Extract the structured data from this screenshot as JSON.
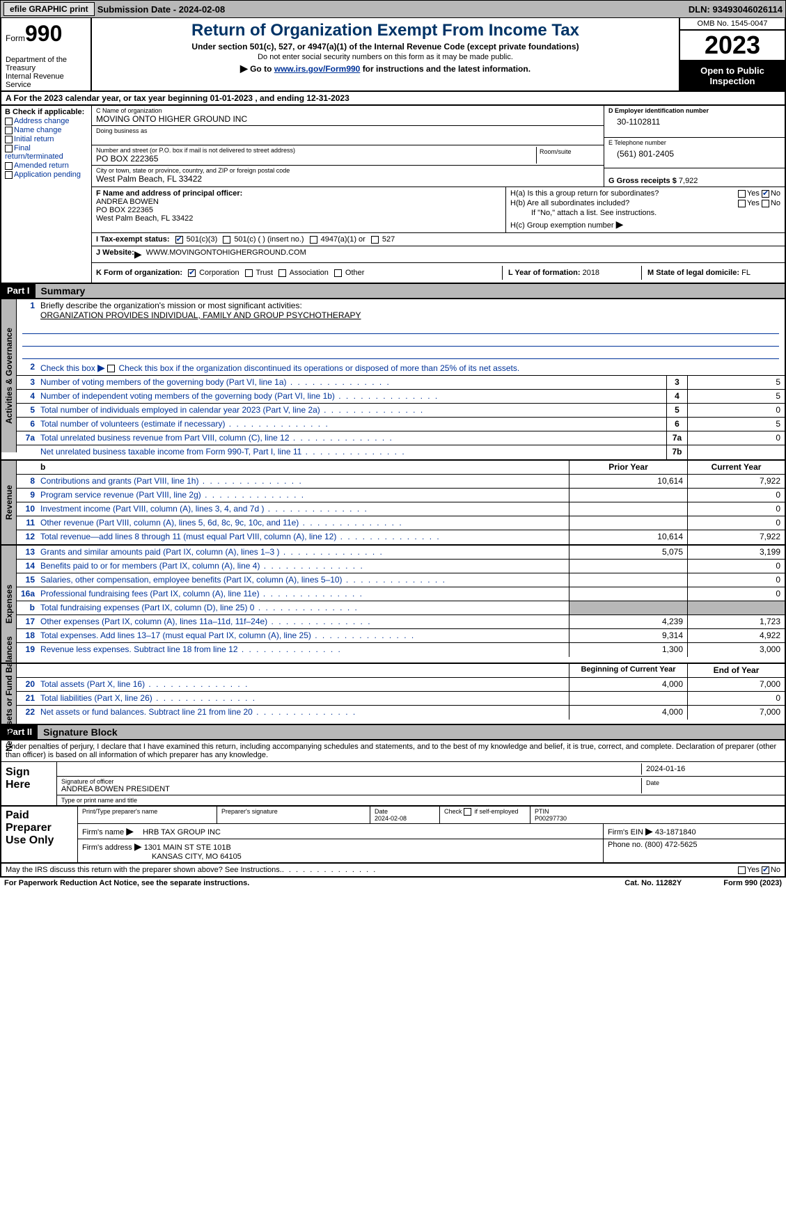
{
  "topbar": {
    "efile_btn": "efile GRAPHIC print",
    "submission_label": "Submission Date - 2024-02-08",
    "dln": "DLN: 93493046026114"
  },
  "header": {
    "form_label": "Form",
    "form_number": "990",
    "dept": "Department of the Treasury",
    "irs": "Internal Revenue Service",
    "title": "Return of Organization Exempt From Income Tax",
    "sub1": "Under section 501(c), 527, or 4947(a)(1) of the Internal Revenue Code (except private foundations)",
    "sub2": "Do not enter social security numbers on this form as it may be made public.",
    "goto_prefix": "Go to ",
    "goto_link": "www.irs.gov/Form990",
    "goto_suffix": " for instructions and the latest information.",
    "omb": "OMB No. 1545-0047",
    "year": "2023",
    "inspect": "Open to Public Inspection"
  },
  "row_a": "A  For the 2023 calendar year, or tax year beginning 01-01-2023    , and ending 12-31-2023",
  "box_b": {
    "hdr": "B Check if applicable:",
    "opts": [
      "Address change",
      "Name change",
      "Initial return",
      "Final return/terminated",
      "Amended return",
      "Application pending"
    ]
  },
  "box_c": {
    "name_lbl": "C Name of organization",
    "name_val": "MOVING ONTO HIGHER GROUND INC",
    "dba_lbl": "Doing business as",
    "addr_lbl": "Number and street (or P.O. box if mail is not delivered to street address)",
    "addr_val": "PO BOX 222365",
    "room_lbl": "Room/suite",
    "city_lbl": "City or town, state or province, country, and ZIP or foreign postal code",
    "city_val": "West Palm Beach, FL   33422"
  },
  "box_d": {
    "lbl": "D Employer identification number",
    "val": "30-1102811"
  },
  "box_e": {
    "lbl": "E Telephone number",
    "val": "(561) 801-2405"
  },
  "box_g": {
    "lbl": "G Gross receipts $",
    "val": "7,922"
  },
  "box_f": {
    "lbl": "F  Name and address of principal officer:",
    "name": "ANDREA BOWEN",
    "addr1": "PO BOX 222365",
    "addr2": "West Palm Beach, FL   33422"
  },
  "box_h": {
    "a_lbl": "H(a)  Is this a group return for subordinates?",
    "b_lbl": "H(b)  Are all subordinates included?",
    "b_note": "If \"No,\" attach a list. See instructions.",
    "c_lbl": "H(c)  Group exemption number ",
    "yes": "Yes",
    "no": "No"
  },
  "row_i": {
    "lbl": "I   Tax-exempt status:",
    "opt1": "501(c)(3)",
    "opt2": "501(c) (  ) (insert no.)",
    "opt3": "4947(a)(1) or",
    "opt4": "527"
  },
  "row_j": {
    "lbl": "J   Website: ",
    "val": "WWW.MOVINGONTOHIGHERGROUND.COM",
    "arrow": "▶"
  },
  "row_k": {
    "lbl": "K Form of organization:",
    "opts": [
      "Corporation",
      "Trust",
      "Association",
      "Other"
    ],
    "l_lbl": "L Year of formation:",
    "l_val": "2018",
    "m_lbl": "M State of legal domicile:",
    "m_val": "FL"
  },
  "part1": {
    "num": "Part I",
    "title": "Summary"
  },
  "summary": {
    "line1_lbl": "Briefly describe the organization's mission or most significant activities:",
    "line1_val": "ORGANIZATION PROVIDES INDIVIDUAL, FAMILY AND GROUP PSYCHOTHERAPY",
    "line2_lbl": "Check this box         if the organization discontinued its operations or disposed of more than 25% of its net assets.",
    "rows_gov": [
      {
        "n": "3",
        "d": "Number of voting members of the governing body (Part VI, line 1a)",
        "box": "3",
        "v": "5"
      },
      {
        "n": "4",
        "d": "Number of independent voting members of the governing body (Part VI, line 1b)",
        "box": "4",
        "v": "5"
      },
      {
        "n": "5",
        "d": "Total number of individuals employed in calendar year 2023 (Part V, line 2a)",
        "box": "5",
        "v": "0"
      },
      {
        "n": "6",
        "d": "Total number of volunteers (estimate if necessary)",
        "box": "6",
        "v": "5"
      },
      {
        "n": "7a",
        "d": "Total unrelated business revenue from Part VIII, column (C), line 12",
        "box": "7a",
        "v": "0"
      },
      {
        "n": "",
        "d": "Net unrelated business taxable income from Form 990-T, Part I, line 11",
        "box": "7b",
        "v": ""
      }
    ],
    "prior_hdr": "Prior Year",
    "curr_hdr": "Current Year",
    "rows_rev": [
      {
        "n": "8",
        "d": "Contributions and grants (Part VIII, line 1h)",
        "p": "10,614",
        "c": "7,922"
      },
      {
        "n": "9",
        "d": "Program service revenue (Part VIII, line 2g)",
        "p": "",
        "c": "0"
      },
      {
        "n": "10",
        "d": "Investment income (Part VIII, column (A), lines 3, 4, and 7d )",
        "p": "",
        "c": "0"
      },
      {
        "n": "11",
        "d": "Other revenue (Part VIII, column (A), lines 5, 6d, 8c, 9c, 10c, and 11e)",
        "p": "",
        "c": "0"
      },
      {
        "n": "12",
        "d": "Total revenue—add lines 8 through 11 (must equal Part VIII, column (A), line 12)",
        "p": "10,614",
        "c": "7,922"
      }
    ],
    "rows_exp": [
      {
        "n": "13",
        "d": "Grants and similar amounts paid (Part IX, column (A), lines 1–3 )",
        "p": "5,075",
        "c": "3,199"
      },
      {
        "n": "14",
        "d": "Benefits paid to or for members (Part IX, column (A), line 4)",
        "p": "",
        "c": "0"
      },
      {
        "n": "15",
        "d": "Salaries, other compensation, employee benefits (Part IX, column (A), lines 5–10)",
        "p": "",
        "c": "0"
      },
      {
        "n": "16a",
        "d": "Professional fundraising fees (Part IX, column (A), line 11e)",
        "p": "",
        "c": "0"
      },
      {
        "n": "b",
        "d": "Total fundraising expenses (Part IX, column (D), line 25) 0",
        "p": "shade",
        "c": "shade"
      },
      {
        "n": "17",
        "d": "Other expenses (Part IX, column (A), lines 11a–11d, 11f–24e)",
        "p": "4,239",
        "c": "1,723"
      },
      {
        "n": "18",
        "d": "Total expenses. Add lines 13–17 (must equal Part IX, column (A), line 25)",
        "p": "9,314",
        "c": "4,922"
      },
      {
        "n": "19",
        "d": "Revenue less expenses. Subtract line 18 from line 12",
        "p": "1,300",
        "c": "3,000"
      }
    ],
    "beg_hdr": "Beginning of Current Year",
    "end_hdr": "End of Year",
    "rows_net": [
      {
        "n": "20",
        "d": "Total assets (Part X, line 16)",
        "p": "4,000",
        "c": "7,000"
      },
      {
        "n": "21",
        "d": "Total liabilities (Part X, line 26)",
        "p": "",
        "c": "0"
      },
      {
        "n": "22",
        "d": "Net assets or fund balances. Subtract line 21 from line 20",
        "p": "4,000",
        "c": "7,000"
      }
    ],
    "vtabs": {
      "gov": "Activities & Governance",
      "rev": "Revenue",
      "exp": "Expenses",
      "net": "Net Assets or Fund Balances"
    }
  },
  "part2": {
    "num": "Part II",
    "title": "Signature Block"
  },
  "sig": {
    "decl": "Under penalties of perjury, I declare that I have examined this return, including accompanying schedules and statements, and to the best of my knowledge and belief, it is true, correct, and complete. Declaration of preparer (other than officer) is based on all information of which preparer has any knowledge.",
    "sign_here": "Sign Here",
    "sig_officer_lbl": "Signature of officer",
    "date_lbl": "Date",
    "date_val": "2024-01-16",
    "officer_name": "ANDREA BOWEN PRESIDENT",
    "type_lbl": "Type or print name and title",
    "paid_prep": "Paid Preparer Use Only",
    "prep_name_lbl": "Print/Type preparer's name",
    "prep_sig_lbl": "Preparer's signature",
    "prep_date_lbl": "Date",
    "prep_date_val": "2024-02-08",
    "check_self": "Check         if self-employed",
    "ptin_lbl": "PTIN",
    "ptin_val": "P00297730",
    "firm_name_lbl": "Firm's name",
    "firm_name_val": "HRB TAX GROUP INC",
    "firm_ein_lbl": "Firm's EIN",
    "firm_ein_val": "43-1871840",
    "firm_addr_lbl": "Firm's address",
    "firm_addr_val1": "1301 MAIN ST STE 101B",
    "firm_addr_val2": "KANSAS CITY, MO   64105",
    "phone_lbl": "Phone no.",
    "phone_val": "(800) 472-5625",
    "discuss": "May the IRS discuss this return with the preparer shown above? See Instructions.",
    "yes": "Yes",
    "no": "No"
  },
  "footer": {
    "paperwork": "For Paperwork Reduction Act Notice, see the separate instructions.",
    "cat": "Cat. No. 11282Y",
    "form": "Form 990 (2023)"
  }
}
